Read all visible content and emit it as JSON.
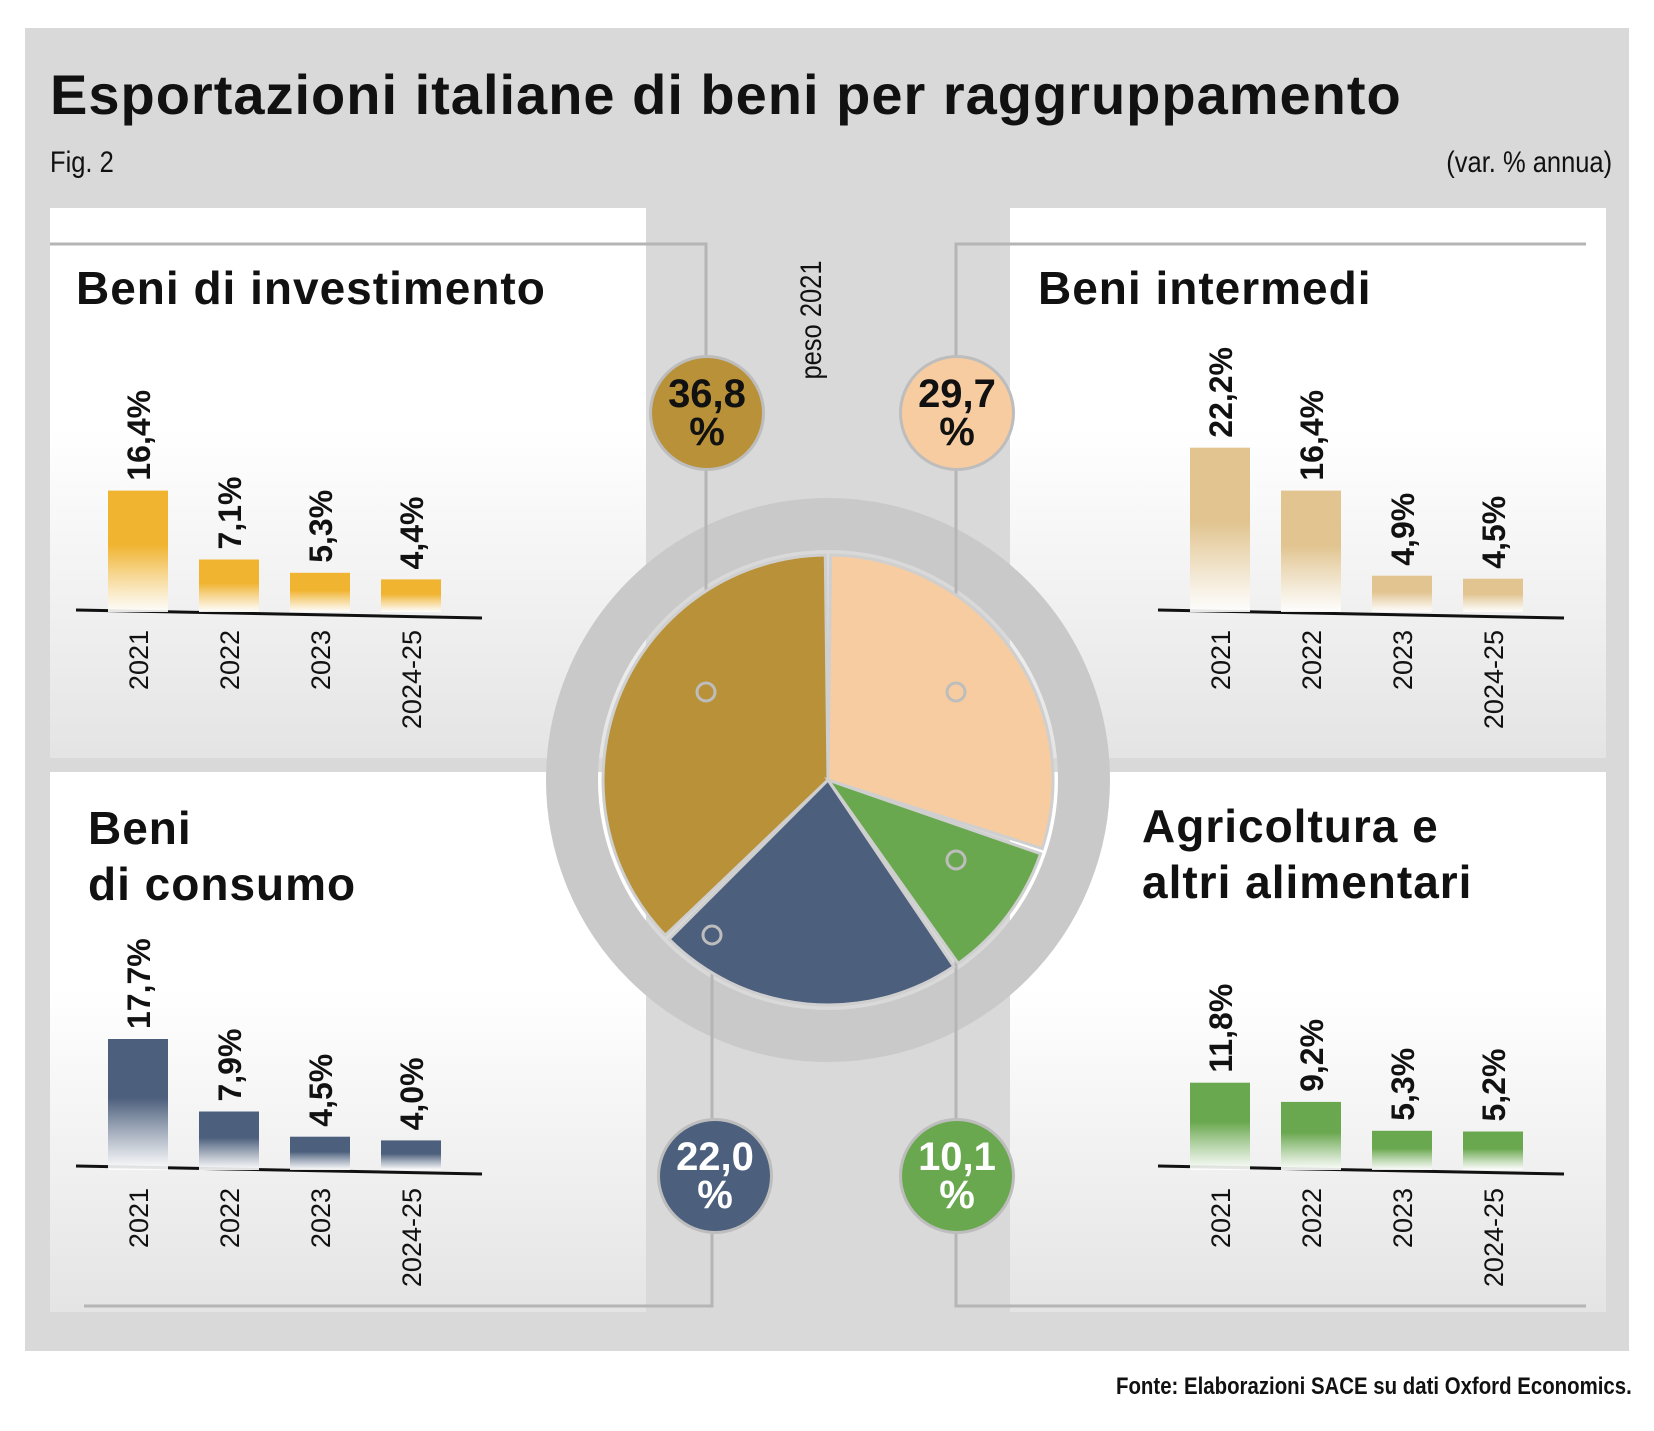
{
  "title": "Esportazioni italiane di beni per raggruppamento",
  "figure_label": "Fig. 2",
  "unit_label": "(var. % annua)",
  "center_label": "peso 2021",
  "source": "Fonte: Elaborazioni SACE su dati Oxford Economics.",
  "colors": {
    "investimento": "#b99139",
    "intermedi": "#f7cca0",
    "consumo": "#4c5f7c",
    "agricoltura": "#6aa84f",
    "bars_investimento": "#f0b431",
    "bars_intermedi": "#e1c48f",
    "bars_consumo": "#4c5f7c",
    "bars_agricoltura": "#6aa84f"
  },
  "panels": {
    "investimento": {
      "title_lines": [
        "Beni di investimento"
      ],
      "share_number": "36,8",
      "share_symbol": "%"
    },
    "intermedi": {
      "title_lines": [
        "Beni intermedi"
      ],
      "share_number": "29,7",
      "share_symbol": "%"
    },
    "consumo": {
      "title_lines": [
        "Beni",
        "di consumo"
      ],
      "share_number": "22,0",
      "share_symbol": "%"
    },
    "agricoltura": {
      "title_lines": [
        "Agricoltura e",
        "altri alimentari"
      ],
      "share_number": "10,1",
      "share_symbol": "%"
    }
  },
  "chart_data": [
    {
      "type": "pie",
      "title": "peso 2021",
      "slices": [
        {
          "name": "Beni di investimento",
          "value": 36.8
        },
        {
          "name": "Beni intermedi",
          "value": 29.7
        },
        {
          "name": "Agricoltura e altri alimentari",
          "value": 10.1
        },
        {
          "name": "Beni di consumo",
          "value": 22.0
        }
      ]
    },
    {
      "type": "bar",
      "id": "investimento",
      "title": "Beni di investimento",
      "categories": [
        "2021",
        "2022",
        "2023",
        "2024-25"
      ],
      "values": [
        16.4,
        7.1,
        5.3,
        4.4
      ],
      "labels": [
        "16,4%",
        "7,1%",
        "5,3%",
        "4,4%"
      ]
    },
    {
      "type": "bar",
      "id": "intermedi",
      "title": "Beni intermedi",
      "categories": [
        "2021",
        "2022",
        "2023",
        "2024-25"
      ],
      "values": [
        22.2,
        16.4,
        4.9,
        4.5
      ],
      "labels": [
        "22,2%",
        "16,4%",
        "4,9%",
        "4,5%"
      ]
    },
    {
      "type": "bar",
      "id": "consumo",
      "title": "Beni di consumo",
      "categories": [
        "2021",
        "2022",
        "2023",
        "2024-25"
      ],
      "values": [
        17.7,
        7.9,
        4.5,
        4.0
      ],
      "labels": [
        "17,7%",
        "7,9%",
        "4,5%",
        "4,0%"
      ]
    },
    {
      "type": "bar",
      "id": "agricoltura",
      "title": "Agricoltura e altri alimentari",
      "categories": [
        "2021",
        "2022",
        "2023",
        "2024-25"
      ],
      "values": [
        11.8,
        9.2,
        5.3,
        5.2
      ],
      "labels": [
        "11,8%",
        "9,2%",
        "5,3%",
        "5,2%"
      ]
    }
  ]
}
